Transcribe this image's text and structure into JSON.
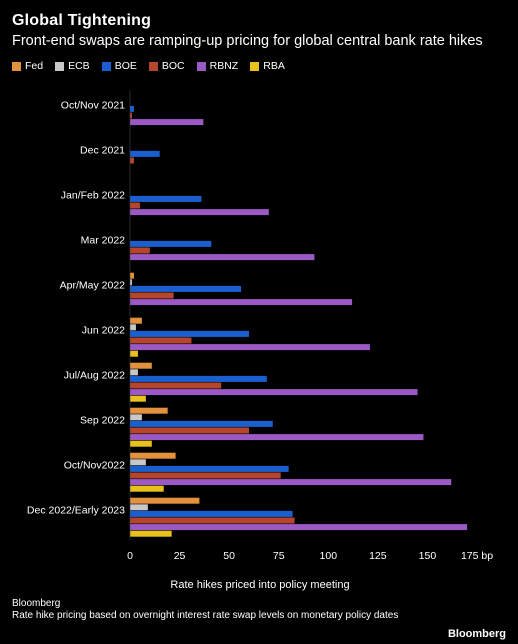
{
  "header": {
    "title": "Global Tightening",
    "subtitle": "Front-end swaps are ramping-up pricing for global central bank rate hikes"
  },
  "footer": {
    "source": "Bloomberg",
    "note": "Rate hike pricing based on overnight interest rate swap levels on monetary policy dates",
    "brand": "Bloomberg"
  },
  "chart_data": {
    "type": "bar",
    "orientation": "horizontal",
    "xlabel": "Rate hikes priced into policy meeting",
    "xunit": "bp",
    "xlim": [
      0,
      175
    ],
    "xticks": [
      0,
      25,
      50,
      75,
      100,
      125,
      150,
      175
    ],
    "grid": false,
    "legend_position": "top-left",
    "categories": [
      "Oct/Nov 2021",
      "Dec 2021",
      "Jan/Feb 2022",
      "Mar 2022",
      "Apr/May 2022",
      "Jun 2022",
      "Jul/Aug 2022",
      "Sep 2022",
      "Oct/Nov2022",
      "Dec 2022/Early 2023"
    ],
    "series": [
      {
        "name": "Fed",
        "color": "#e3913f",
        "values": [
          0,
          0,
          0,
          0,
          2,
          6,
          11,
          19,
          23,
          35
        ]
      },
      {
        "name": "ECB",
        "color": "#c8c8c8",
        "values": [
          0,
          0,
          0,
          0,
          1,
          3,
          4,
          6,
          8,
          9
        ]
      },
      {
        "name": "BOE",
        "color": "#1a5fd0",
        "values": [
          2,
          15,
          36,
          41,
          56,
          60,
          69,
          72,
          80,
          82
        ]
      },
      {
        "name": "BOC",
        "color": "#b5462d",
        "values": [
          1,
          2,
          5,
          10,
          22,
          31,
          46,
          60,
          76,
          83
        ]
      },
      {
        "name": "RBNZ",
        "color": "#9b59c6",
        "values": [
          37,
          0,
          70,
          93,
          112,
          121,
          145,
          148,
          162,
          170
        ]
      },
      {
        "name": "RBA",
        "color": "#e8c21a",
        "values": [
          0,
          0,
          0,
          0,
          0,
          4,
          8,
          11,
          17,
          21
        ]
      }
    ]
  }
}
